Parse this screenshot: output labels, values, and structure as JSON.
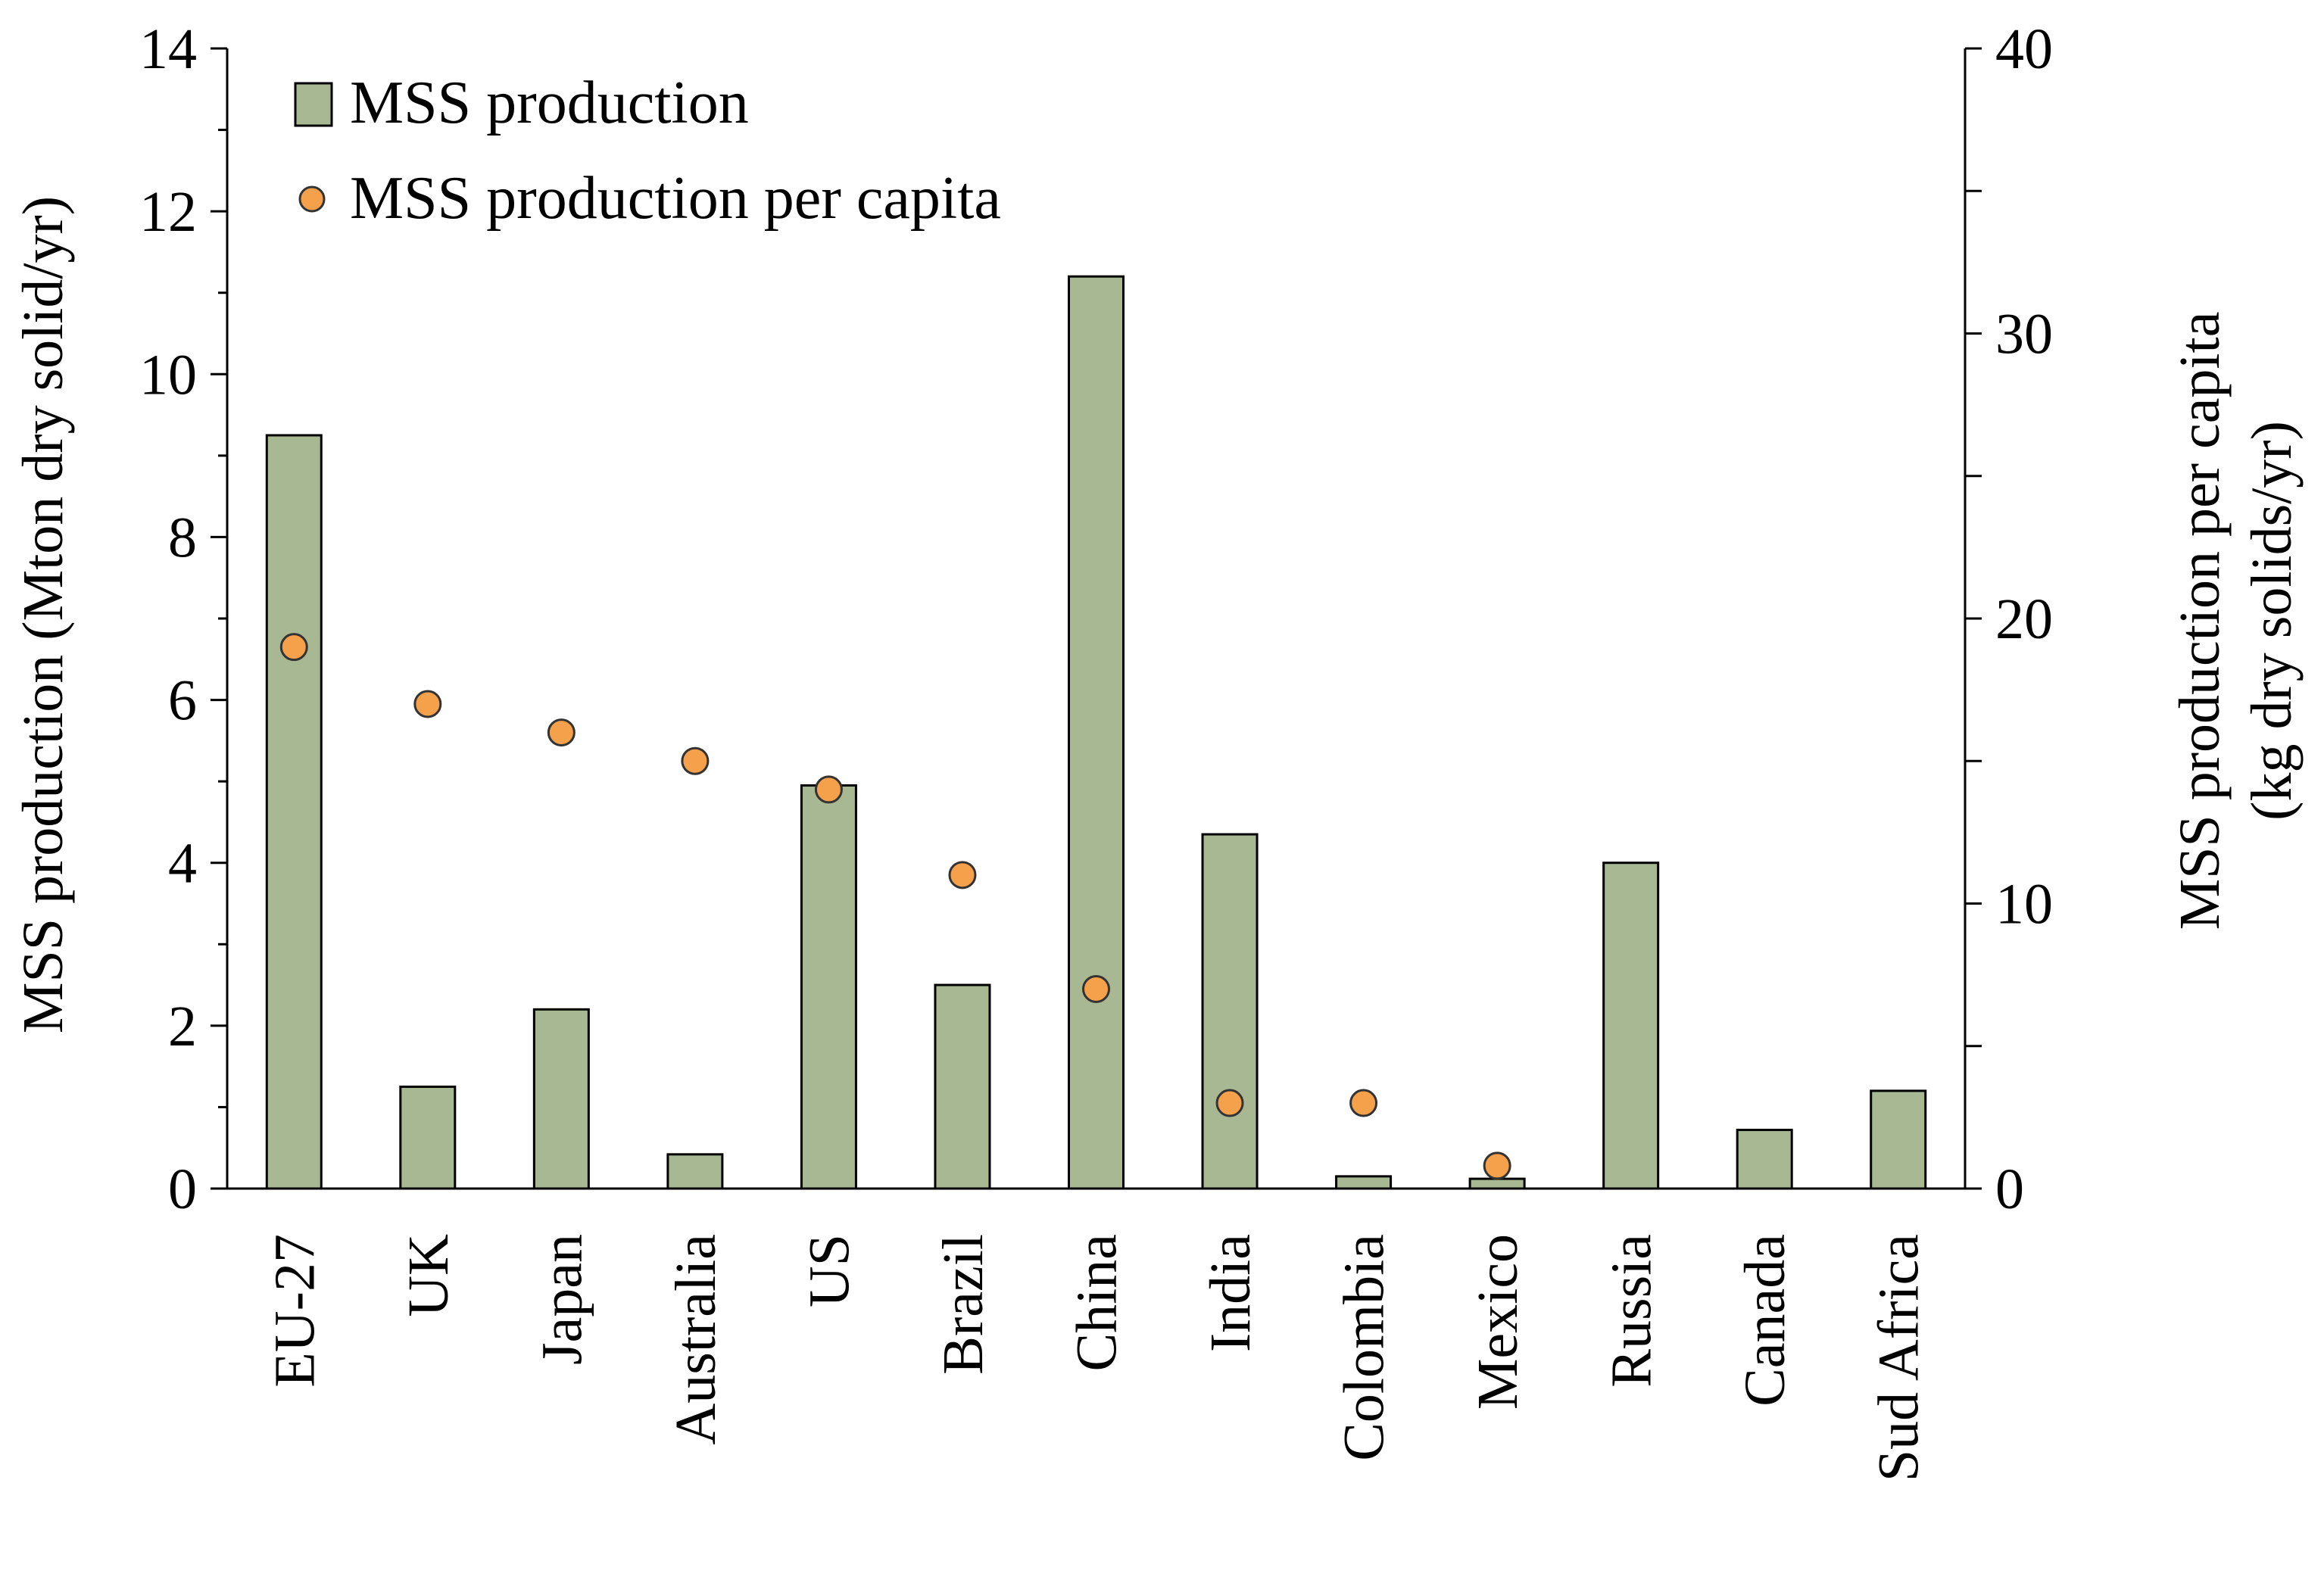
{
  "chart_data": {
    "type": "bar",
    "categories": [
      "EU-27",
      "UK",
      "Japan",
      "Australia",
      "US",
      "Brazil",
      "China",
      "India",
      "Colombia",
      "Mexico",
      "Russia",
      "Canada",
      "Sud Africa"
    ],
    "series": [
      {
        "name": "MSS production",
        "type": "bar",
        "axis": "left",
        "values": [
          9.25,
          1.25,
          2.2,
          0.42,
          4.95,
          2.5,
          11.2,
          4.35,
          0.15,
          0.12,
          4.0,
          0.72,
          1.2
        ]
      },
      {
        "name": "MSS production per capita",
        "type": "scatter",
        "axis": "right",
        "values": [
          19.0,
          17.0,
          16.0,
          15.0,
          14.0,
          11.0,
          7.0,
          3.0,
          3.0,
          0.8,
          null,
          null,
          null
        ]
      }
    ],
    "y_left": {
      "label": "MSS production (Mton dry solid/yr)",
      "ylim": [
        0,
        14
      ],
      "ticks": [
        0,
        2,
        4,
        6,
        8,
        10,
        12,
        14
      ]
    },
    "y_right": {
      "label_line1": "MSS production per capita",
      "label_line2": "(kg dry solids/yr)",
      "ylim": [
        0,
        40
      ],
      "ticks": [
        0,
        10,
        20,
        30,
        40
      ],
      "minor_ticks": [
        5,
        15,
        25,
        35
      ]
    },
    "legend": {
      "position": "top-left",
      "entries": [
        "MSS production",
        "MSS production per capita"
      ]
    },
    "colors": {
      "bar_fill": "#a7b893",
      "bar_stroke": "#000000",
      "marker_fill": "#f5a04a",
      "marker_stroke": "#333333"
    }
  }
}
